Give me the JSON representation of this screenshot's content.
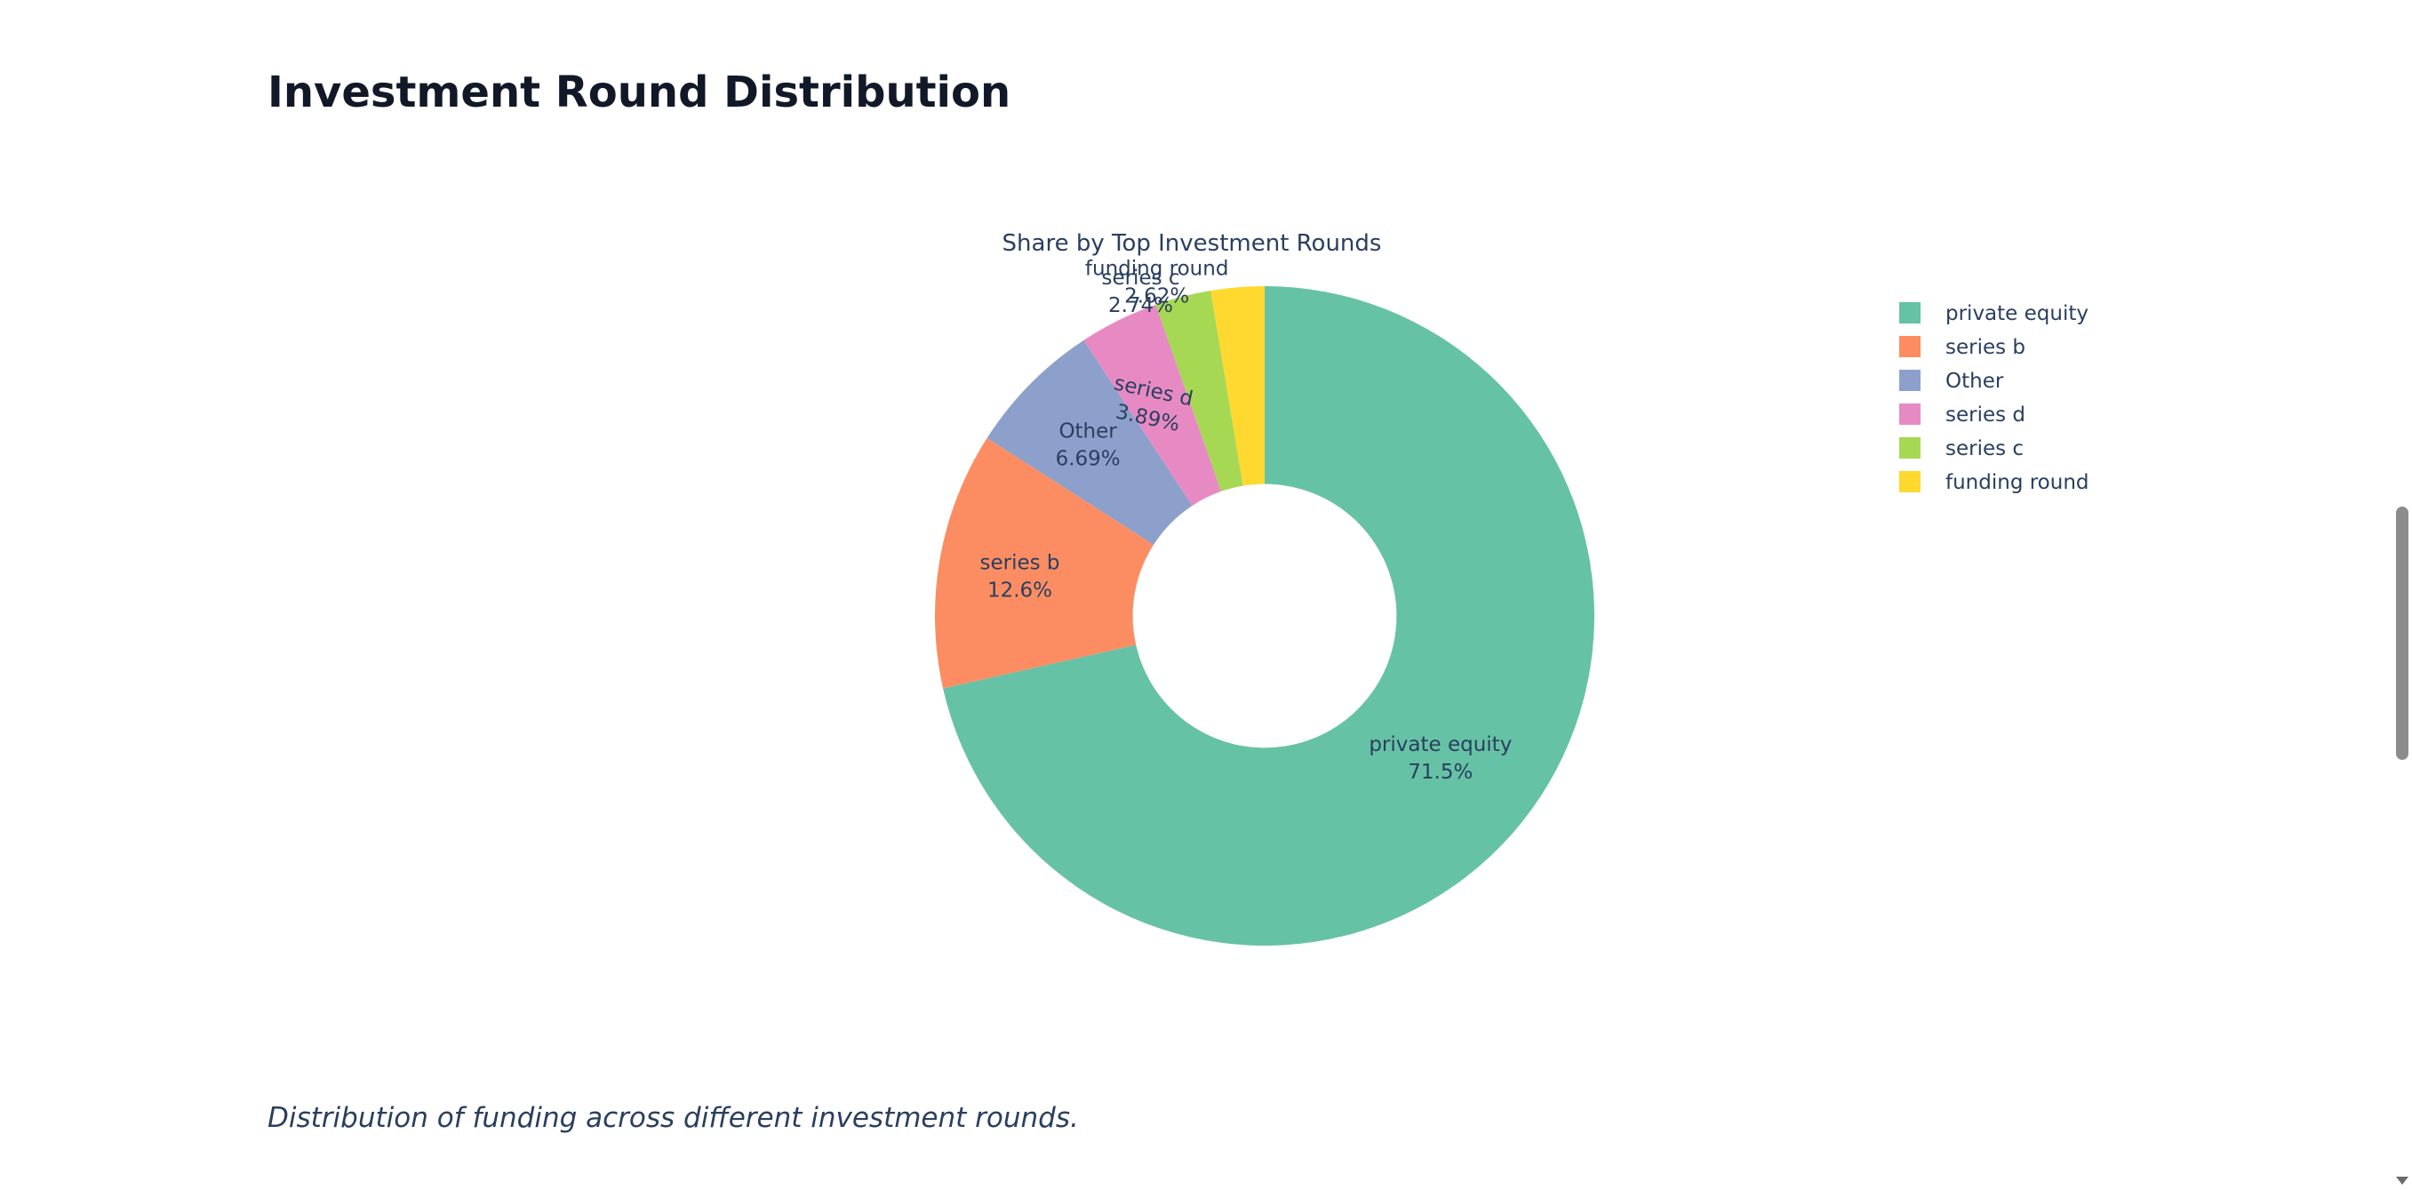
{
  "page": {
    "title": "Investment Round Distribution",
    "caption": "Distribution of funding across different investment rounds."
  },
  "chart_data": {
    "type": "pie",
    "title": "Share by Top Investment Rounds",
    "hole": 0.4,
    "sort": "descending",
    "direction": "clockwise",
    "legend_position": "right",
    "categories": [
      "private equity",
      "series b",
      "Other",
      "series d",
      "series c",
      "funding round"
    ],
    "values": [
      71.5,
      12.6,
      6.69,
      3.89,
      2.74,
      2.62
    ],
    "labels": [
      "71.5%",
      "12.6%",
      "6.69%",
      "3.89%",
      "2.74%",
      "2.62%"
    ],
    "colors": [
      "#66c2a5",
      "#fc8d62",
      "#8da0cb",
      "#e78ac3",
      "#a6d854",
      "#ffd92f"
    ]
  }
}
